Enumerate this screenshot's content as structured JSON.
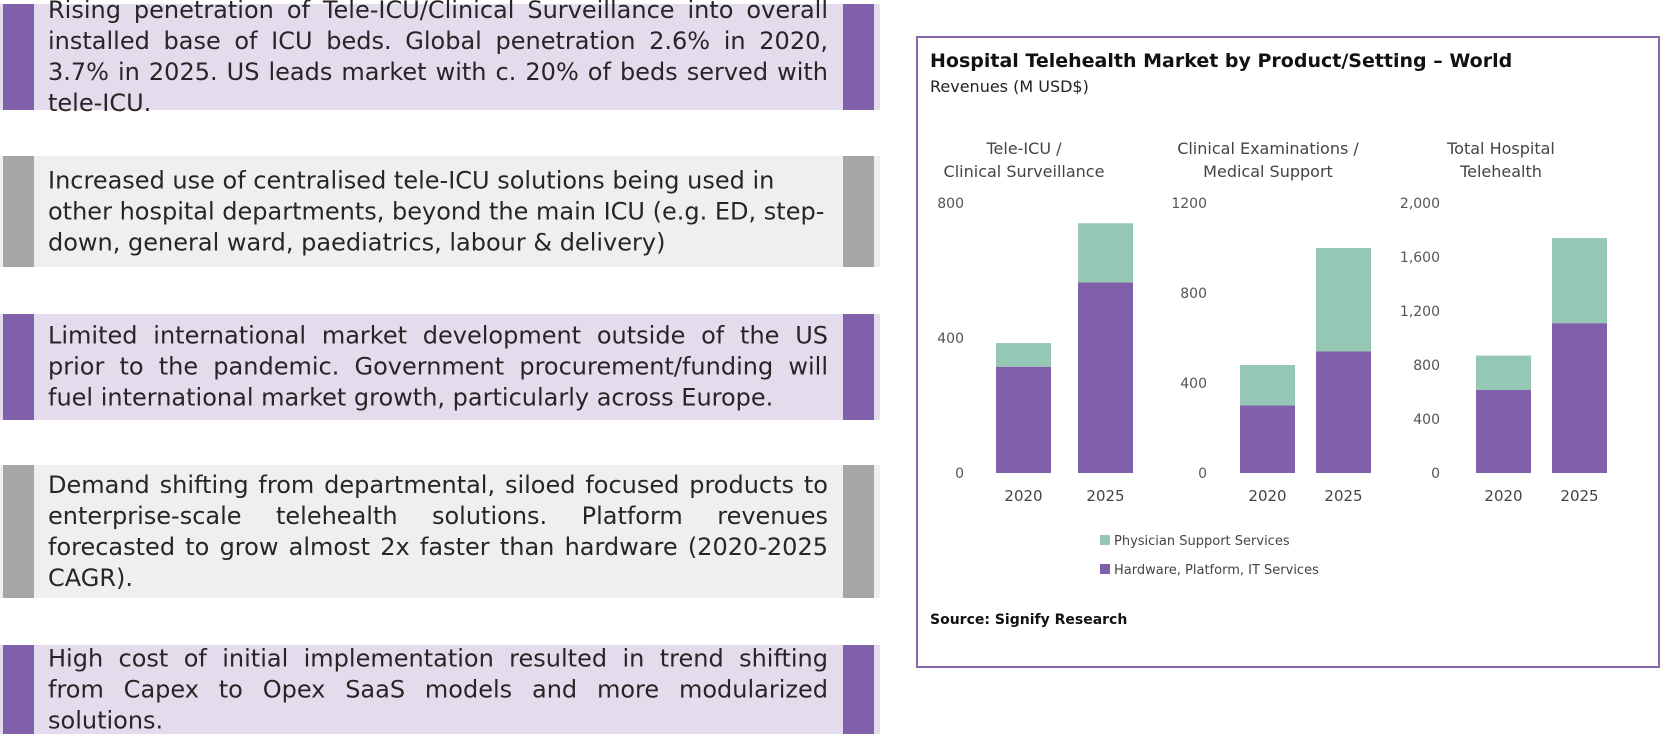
{
  "colors": {
    "purple": "#8060aa",
    "grey": "#a6a6a6",
    "purple_box_bg": "#e4dced",
    "grey_box_bg": "#efefef",
    "teal": "#96c7b5",
    "border": "#8a66aa"
  },
  "boxes": [
    {
      "theme": "purple",
      "text": "Rising penetration of Tele-ICU/Clinical Surveillance into overall installed base of ICU beds. Global penetration 2.6% in 2020, 3.7% in 2025. US leads market with c. 20% of beds served with tele-ICU."
    },
    {
      "theme": "grey",
      "text": "Increased use of centralised tele-ICU solutions being used in other hospital departments, beyond the main ICU (e.g. ED, step-down, general ward, paediatrics, labour & delivery)"
    },
    {
      "theme": "purple",
      "text": "Limited international market development outside of the US prior to the pandemic. Government procurement/funding will fuel international market growth, particularly across Europe."
    },
    {
      "theme": "grey",
      "text": "Demand shifting from departmental, siloed focused products to enterprise-scale telehealth solutions. Platform revenues forecasted to grow almost 2x faster than hardware (2020-2025 CAGR)."
    },
    {
      "theme": "purple",
      "text": "High cost of initial implementation resulted in trend shifting from Capex to Opex SaaS models and more modularized solutions."
    }
  ],
  "chart_title": "Hospital Telehealth Market by Product/Setting – World",
  "chart_subtitle": "Revenues (M USD$)",
  "source": "Source: Signify Research",
  "chart_data": [
    {
      "type": "bar",
      "stacked": true,
      "title": "Tele-ICU / Clinical Surveillance",
      "title_lines": [
        "Tele-ICU /",
        "Clinical Surveillance"
      ],
      "categories": [
        "2020",
        "2025"
      ],
      "ylim": [
        0,
        800
      ],
      "yticks": [
        "0",
        "400",
        "800"
      ],
      "series": [
        {
          "name": "Hardware, Platform, IT Services",
          "values": [
            315,
            565
          ]
        },
        {
          "name": "Physician Support Services",
          "values": [
            70,
            175
          ]
        }
      ]
    },
    {
      "type": "bar",
      "stacked": true,
      "title": "Clinical Examinations / Medical Support",
      "title_lines": [
        "Clinical Examinations /",
        "Medical Support"
      ],
      "categories": [
        "2020",
        "2025"
      ],
      "ylim": [
        0,
        1200
      ],
      "yticks": [
        "0",
        "400",
        "800",
        "1200"
      ],
      "series": [
        {
          "name": "Hardware, Platform, IT Services",
          "values": [
            300,
            540
          ]
        },
        {
          "name": "Physician Support Services",
          "values": [
            180,
            460
          ]
        }
      ]
    },
    {
      "type": "bar",
      "stacked": true,
      "title": "Total Hospital Telehealth",
      "title_lines": [
        "Total Hospital",
        "Telehealth"
      ],
      "categories": [
        "2020",
        "2025"
      ],
      "ylim": [
        0,
        2000
      ],
      "yticks": [
        "0",
        "400",
        "800",
        "1,200",
        "1,600",
        "2,000"
      ],
      "series": [
        {
          "name": "Hardware, Platform, IT Services",
          "values": [
            615,
            1110
          ]
        },
        {
          "name": "Physician Support Services",
          "values": [
            255,
            630
          ]
        }
      ]
    }
  ],
  "legend": [
    {
      "name": "Physician Support Services",
      "color": "#96c7b5"
    },
    {
      "name": "Hardware, Platform, IT Services",
      "color": "#8060aa"
    }
  ]
}
